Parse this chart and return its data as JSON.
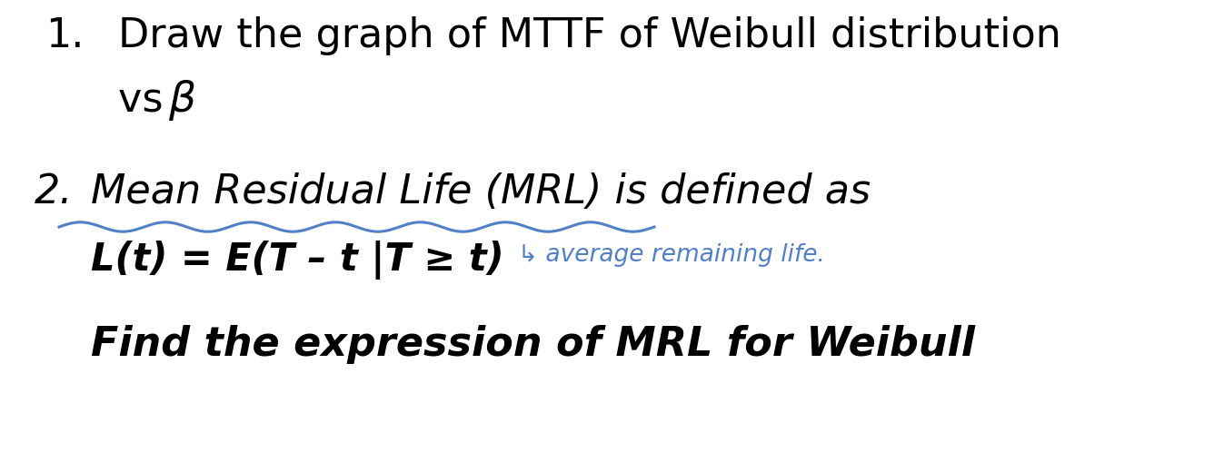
{
  "background_color": "#ffffff",
  "figsize": [
    13.36,
    5.2
  ],
  "dpi": 100,
  "line1_num": "1.",
  "line1_text": "Draw the graph of MTTF of Weibull distribution",
  "line2_text": "vs ",
  "line2_beta": "β",
  "line3_num": "2.",
  "line3_text": "Mean Residual Life (MRL) is defined as",
  "line4_formula": "L(t) = E(T – t |T ≥ t)",
  "line5_text": "Find the expression of MRL for Weibull",
  "handwritten_text": "↳ average remaining life.",
  "text_color": "#000000",
  "blue_color": "#5080C8",
  "font_size_main": 32,
  "font_size_formula": 30,
  "font_size_handwritten": 19
}
